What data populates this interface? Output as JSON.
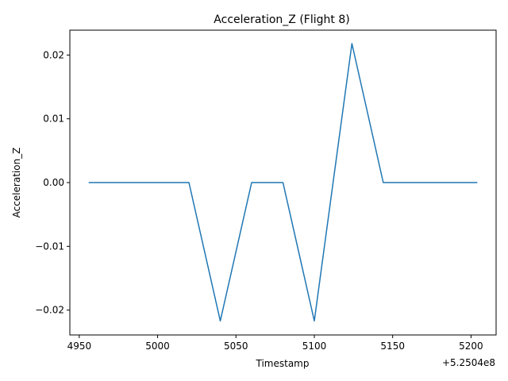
{
  "chart_data": {
    "type": "line",
    "title": "Acceleration_Z (Flight 8)",
    "xlabel": "Timestamp",
    "ylabel": "Acceleration_Z",
    "x_offset_label": "+5.2504e8",
    "xlim": [
      4944,
      5216
    ],
    "ylim": [
      -0.0239,
      0.0239
    ],
    "x_ticks": [
      4950,
      5000,
      5050,
      5100,
      5150,
      5200
    ],
    "x_tick_labels": [
      "4950",
      "5000",
      "5050",
      "5100",
      "5150",
      "5200"
    ],
    "y_ticks": [
      -0.02,
      -0.01,
      0.0,
      0.01,
      0.02
    ],
    "y_tick_labels": [
      "−0.02",
      "−0.01",
      "0.00",
      "0.01",
      "0.02"
    ],
    "grid": false,
    "legend": "none",
    "color": "#1f77b4",
    "series": [
      {
        "x": [
          4956,
          5020,
          5040,
          5060,
          5080,
          5100,
          5124,
          5144,
          5204
        ],
        "y": [
          0.0,
          0.0,
          -0.0217,
          0.0,
          0.0,
          -0.0217,
          0.0218,
          0.0,
          0.0
        ]
      }
    ]
  }
}
